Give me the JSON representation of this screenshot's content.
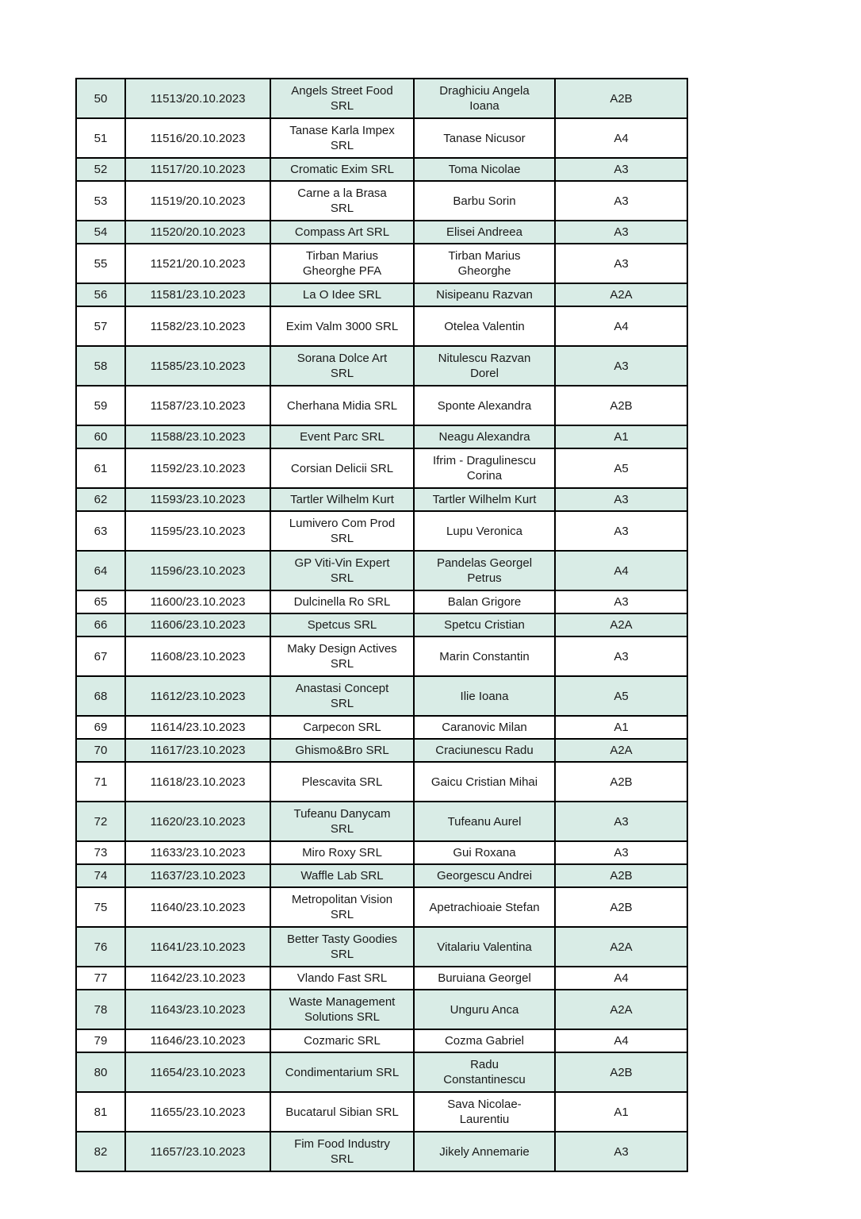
{
  "page": {
    "background": "#ffffff"
  },
  "table": {
    "border_color": "#000000",
    "row_colors": {
      "striped": "#d9ece6",
      "plain": "#ffffff"
    },
    "columns": [
      "index",
      "registration",
      "company",
      "person",
      "category"
    ],
    "rows": [
      {
        "index": "50",
        "registration": "11513/20.10.2023",
        "company": "Angels Street Food\nSRL",
        "person": "Draghiciu Angela\nIoana",
        "category": "A2B",
        "tall": true
      },
      {
        "index": "51",
        "registration": "11516/20.10.2023",
        "company": "Tanase Karla Impex\nSRL",
        "person": "Tanase Nicusor",
        "category": "A4",
        "tall": true
      },
      {
        "index": "52",
        "registration": "11517/20.10.2023",
        "company": "Cromatic Exim SRL",
        "person": "Toma Nicolae",
        "category": "A3",
        "tall": false
      },
      {
        "index": "53",
        "registration": "11519/20.10.2023",
        "company": "Carne a la Brasa\nSRL",
        "person": "Barbu Sorin",
        "category": "A3",
        "tall": true
      },
      {
        "index": "54",
        "registration": "11520/20.10.2023",
        "company": "Compass Art SRL",
        "person": "Elisei Andreea",
        "category": "A3",
        "tall": false
      },
      {
        "index": "55",
        "registration": "11521/20.10.2023",
        "company": "Tirban Marius\nGheorghe PFA",
        "person": "Tirban Marius\nGheorghe",
        "category": "A3",
        "tall": true
      },
      {
        "index": "56",
        "registration": "11581/23.10.2023",
        "company": "La O Idee SRL",
        "person": "Nisipeanu Razvan",
        "category": "A2A",
        "tall": false
      },
      {
        "index": "57",
        "registration": "11582/23.10.2023",
        "company": "Exim Valm 3000 SRL",
        "person": "Otelea Valentin",
        "category": "A4",
        "tall": true
      },
      {
        "index": "58",
        "registration": "11585/23.10.2023",
        "company": "Sorana Dolce Art\nSRL",
        "person": "Nitulescu Razvan\nDorel",
        "category": "A3",
        "tall": true
      },
      {
        "index": "59",
        "registration": "11587/23.10.2023",
        "company": "Cherhana Midia SRL",
        "person": "Sponte Alexandra",
        "category": "A2B",
        "tall": true
      },
      {
        "index": "60",
        "registration": "11588/23.10.2023",
        "company": "Event Parc SRL",
        "person": "Neagu Alexandra",
        "category": "A1",
        "tall": false
      },
      {
        "index": "61",
        "registration": "11592/23.10.2023",
        "company": "Corsian Delicii SRL",
        "person": "Ifrim - Dragulinescu\nCorina",
        "category": "A5",
        "tall": true
      },
      {
        "index": "62",
        "registration": "11593/23.10.2023",
        "company": "Tartler Wilhelm Kurt",
        "person": "Tartler Wilhelm Kurt",
        "category": "A3",
        "tall": false
      },
      {
        "index": "63",
        "registration": "11595/23.10.2023",
        "company": "Lumivero Com Prod\nSRL",
        "person": "Lupu Veronica",
        "category": "A3",
        "tall": true
      },
      {
        "index": "64",
        "registration": "11596/23.10.2023",
        "company": "GP Viti-Vin Expert\nSRL",
        "person": "Pandelas Georgel\nPetrus",
        "category": "A4",
        "tall": true
      },
      {
        "index": "65",
        "registration": "11600/23.10.2023",
        "company": "Dulcinella Ro SRL",
        "person": "Balan Grigore",
        "category": "A3",
        "tall": false
      },
      {
        "index": "66",
        "registration": "11606/23.10.2023",
        "company": "Spetcus SRL",
        "person": "Spetcu Cristian",
        "category": "A2A",
        "tall": false
      },
      {
        "index": "67",
        "registration": "11608/23.10.2023",
        "company": "Maky Design Actives\nSRL",
        "person": "Marin Constantin",
        "category": "A3",
        "tall": true
      },
      {
        "index": "68",
        "registration": "11612/23.10.2023",
        "company": "Anastasi Concept\nSRL",
        "person": "Ilie Ioana",
        "category": "A5",
        "tall": true
      },
      {
        "index": "69",
        "registration": "11614/23.10.2023",
        "company": "Carpecon SRL",
        "person": "Caranovic Milan",
        "category": "A1",
        "tall": false
      },
      {
        "index": "70",
        "registration": "11617/23.10.2023",
        "company": "Ghismo&Bro SRL",
        "person": "Craciunescu Radu",
        "category": "A2A",
        "tall": false
      },
      {
        "index": "71",
        "registration": "11618/23.10.2023",
        "company": "Plescavita SRL",
        "person": "Gaicu Cristian Mihai",
        "category": "A2B",
        "tall": true
      },
      {
        "index": "72",
        "registration": "11620/23.10.2023",
        "company": "Tufeanu Danycam\nSRL",
        "person": "Tufeanu Aurel",
        "category": "A3",
        "tall": true
      },
      {
        "index": "73",
        "registration": "11633/23.10.2023",
        "company": "Miro Roxy SRL",
        "person": "Gui Roxana",
        "category": "A3",
        "tall": false
      },
      {
        "index": "74",
        "registration": "11637/23.10.2023",
        "company": "Waffle Lab SRL",
        "person": "Georgescu Andrei",
        "category": "A2B",
        "tall": false
      },
      {
        "index": "75",
        "registration": "11640/23.10.2023",
        "company": "Metropolitan Vision\nSRL",
        "person": "Apetrachioaie Stefan",
        "category": "A2B",
        "tall": true
      },
      {
        "index": "76",
        "registration": "11641/23.10.2023",
        "company": "Better Tasty Goodies\nSRL",
        "person": "Vitalariu Valentina",
        "category": "A2A",
        "tall": true
      },
      {
        "index": "77",
        "registration": "11642/23.10.2023",
        "company": "Vlando Fast SRL",
        "person": "Buruiana Georgel",
        "category": "A4",
        "tall": false
      },
      {
        "index": "78",
        "registration": "11643/23.10.2023",
        "company": "Waste Management\nSolutions SRL",
        "person": "Unguru Anca",
        "category": "A2A",
        "tall": true
      },
      {
        "index": "79",
        "registration": "11646/23.10.2023",
        "company": "Cozmaric SRL",
        "person": "Cozma Gabriel",
        "category": "A4",
        "tall": false
      },
      {
        "index": "80",
        "registration": "11654/23.10.2023",
        "company": "Condimentarium SRL",
        "person": "Radu\nConstantinescu",
        "category": "A2B",
        "tall": true
      },
      {
        "index": "81",
        "registration": "11655/23.10.2023",
        "company": "Bucatarul Sibian SRL",
        "person": "Sava Nicolae-\nLaurentiu",
        "category": "A1",
        "tall": true
      },
      {
        "index": "82",
        "registration": "11657/23.10.2023",
        "company": "Fim Food Industry\nSRL",
        "person": "Jikely Annemarie",
        "category": "A3",
        "tall": true
      }
    ]
  }
}
